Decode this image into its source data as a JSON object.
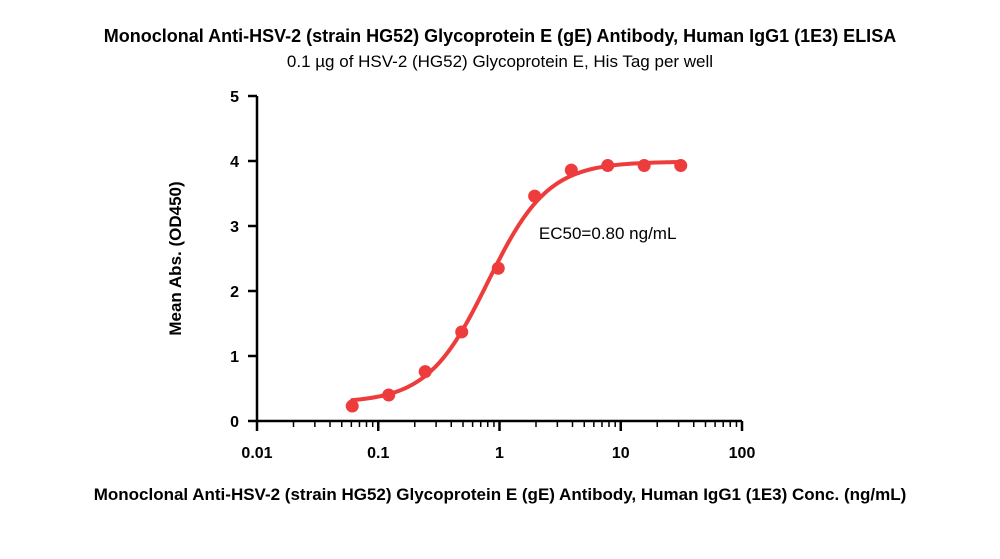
{
  "chart_data": {
    "type": "scatter",
    "title": "Monoclonal Anti-HSV-2 (strain HG52) Glycoprotein E (gE) Antibody, Human IgG1 (1E3) ELISA",
    "subtitle": "0.1 µg of HSV-2 (HG52) Glycoprotein E, His Tag per well",
    "xlabel": "Monoclonal Anti-HSV-2 (strain HG52) Glycoprotein E (gE) Antibody, Human IgG1 (1E3) Conc. (ng/mL)",
    "ylabel": "Mean Abs. (OD450)",
    "x_scale": "log",
    "xlim": [
      0.01,
      100
    ],
    "ylim": [
      0,
      5
    ],
    "x_ticks": [
      0.01,
      0.1,
      1,
      10,
      100
    ],
    "x_tick_labels": [
      "0.01",
      "0.1",
      "1",
      "10",
      "100"
    ],
    "y_ticks": [
      0,
      1,
      2,
      3,
      4,
      5
    ],
    "y_tick_labels": [
      "0",
      "1",
      "2",
      "3",
      "4",
      "5"
    ],
    "grid": false,
    "series": [
      {
        "color": "#ee3b3b",
        "points": [
          {
            "x": 0.061,
            "y": 0.23
          },
          {
            "x": 0.122,
            "y": 0.4
          },
          {
            "x": 0.244,
            "y": 0.76
          },
          {
            "x": 0.488,
            "y": 1.37
          },
          {
            "x": 0.977,
            "y": 2.35
          },
          {
            "x": 1.95,
            "y": 3.46
          },
          {
            "x": 3.91,
            "y": 3.86
          },
          {
            "x": 7.81,
            "y": 3.93
          },
          {
            "x": 15.6,
            "y": 3.93
          },
          {
            "x": 31.25,
            "y": 3.93
          }
        ],
        "fit": {
          "model": "4PL",
          "bottom": 0.28,
          "top": 3.99,
          "ec50": 0.8,
          "hill": 1.75
        }
      }
    ],
    "annotations": [
      {
        "text": "EC50=0.80 ng/mL",
        "x": 7.8,
        "y": 2.8
      }
    ]
  }
}
